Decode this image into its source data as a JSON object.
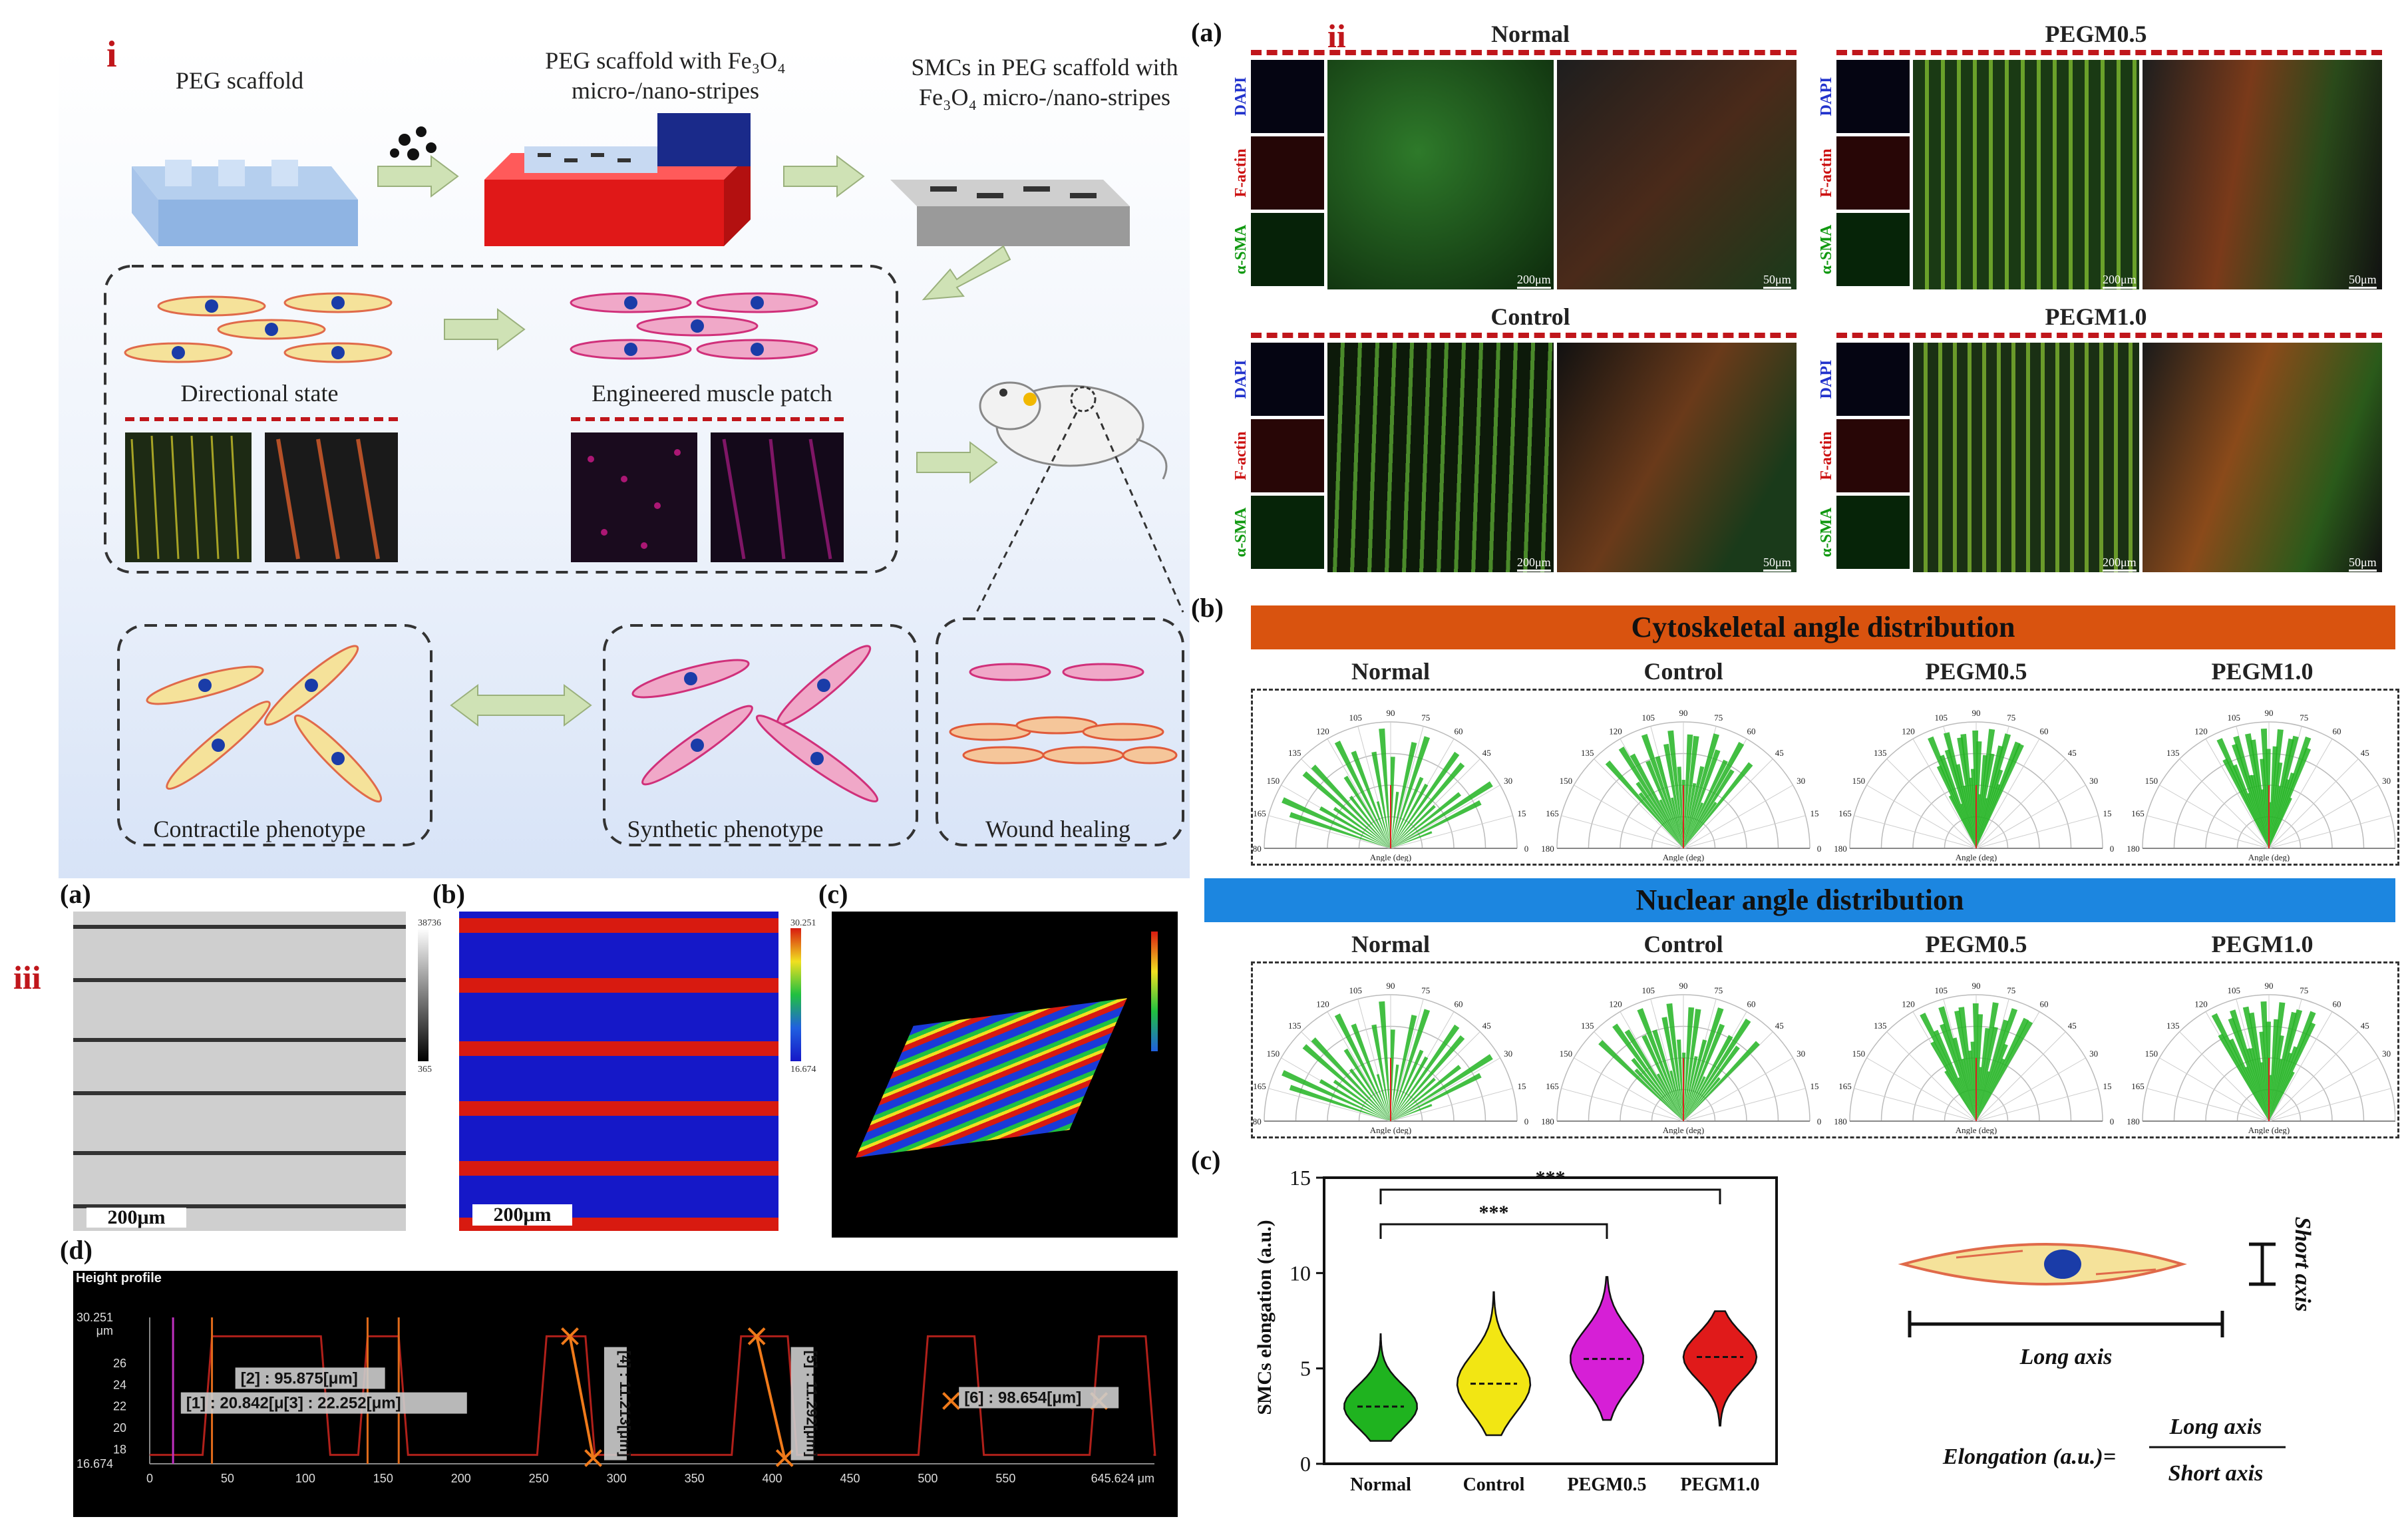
{
  "panel_i": {
    "roman": "i",
    "titles": {
      "scaffold": "PEG scaffold",
      "with_fe3o4_l1": "PEG scaffold with Fe₃O₄",
      "with_fe3o4_l2": "micro-/nano-stripes",
      "smcs_l1": "SMCs in PEG scaffold with",
      "smcs_l2": "Fe₃O₄ micro-/nano-stripes"
    },
    "labels": {
      "directional": "Directional state",
      "patch": "Engineered  muscle patch",
      "contractile": "Contractile phenotype",
      "synthetic": "Synthetic  phenotype",
      "wound": "Wound healing"
    }
  },
  "panel_ii": {
    "roman": "ii",
    "a_label": "(a)",
    "b_label": "(b)",
    "c_label": "(c)",
    "groups": [
      "Normal",
      "PEGM0.5",
      "Control",
      "PEGM1.0"
    ],
    "stains": [
      "DAPI",
      "F-actin",
      "α-SMA"
    ],
    "scale_200": "200μm",
    "scale_50": "50μm",
    "cyto_title": "Cytoskeletal angle distribution",
    "nuclear_title": "Nuclear angle distribution",
    "polar_groups": [
      "Normal",
      "Control",
      "PEGM0.5",
      "PEGM1.0"
    ],
    "polar_ticks": [
      "180",
      "165",
      "150",
      "135",
      "120",
      "105",
      "90",
      "75",
      "60",
      "45",
      "30",
      "15",
      "0"
    ],
    "polar_axis": "Angle (deg)",
    "elongation": {
      "long_axis": "Long axis",
      "short_axis": "Short axis",
      "formula_left": "Elongation (a.u.)=",
      "numerator": "Long axis",
      "denominator": "Short axis"
    }
  },
  "panel_iii": {
    "roman": "iii",
    "labels": [
      "(a)",
      "(b)",
      "(c)",
      "(d)"
    ],
    "scale": "200μm",
    "gray_bar": [
      "38736",
      "365"
    ],
    "color_bar": [
      "30.251",
      "16.674"
    ],
    "profile": {
      "title": "Height profile",
      "y_top": "30.251",
      "y_unit": "μm",
      "y_ticks": [
        "26",
        "24",
        "22",
        "20",
        "18"
      ],
      "y_bottom": "16.674",
      "x_ticks": [
        "0",
        "50",
        "100",
        "150",
        "200",
        "250",
        "300",
        "350",
        "400",
        "450",
        "500",
        "550"
      ],
      "x_end": "645.624 μm",
      "measures": {
        "m2": "[2] : 95.875[μm]",
        "m1": "[1] : 20.842[μ[3] : 22.252[μm]",
        "m4": "[4] : 11.213[μm]",
        "m5": "[5] : 11.292[μm]",
        "m6": "[6] : 98.654[μm]"
      }
    }
  },
  "chart_data": {
    "type": "violin",
    "ylabel": "SMCs elongation (a.u.)",
    "categories": [
      "Normal",
      "Control",
      "PEGM0.5",
      "PEGM1.0"
    ],
    "y_ticks": [
      0,
      5,
      10,
      15
    ],
    "ylim": [
      0,
      15
    ],
    "medians": [
      3.0,
      4.2,
      5.5,
      5.6
    ],
    "ranges": [
      [
        1.2,
        6.8
      ],
      [
        1.5,
        9.0
      ],
      [
        2.3,
        9.8
      ],
      [
        2.0,
        8.0
      ]
    ],
    "colors": [
      "#1fb31f",
      "#f2e613",
      "#d61fd6",
      "#e01a1a"
    ],
    "significance": [
      {
        "from": "Normal",
        "to": "PEGM0.5",
        "label": "***"
      },
      {
        "from": "Normal",
        "to": "PEGM1.0",
        "label": "***"
      }
    ]
  }
}
